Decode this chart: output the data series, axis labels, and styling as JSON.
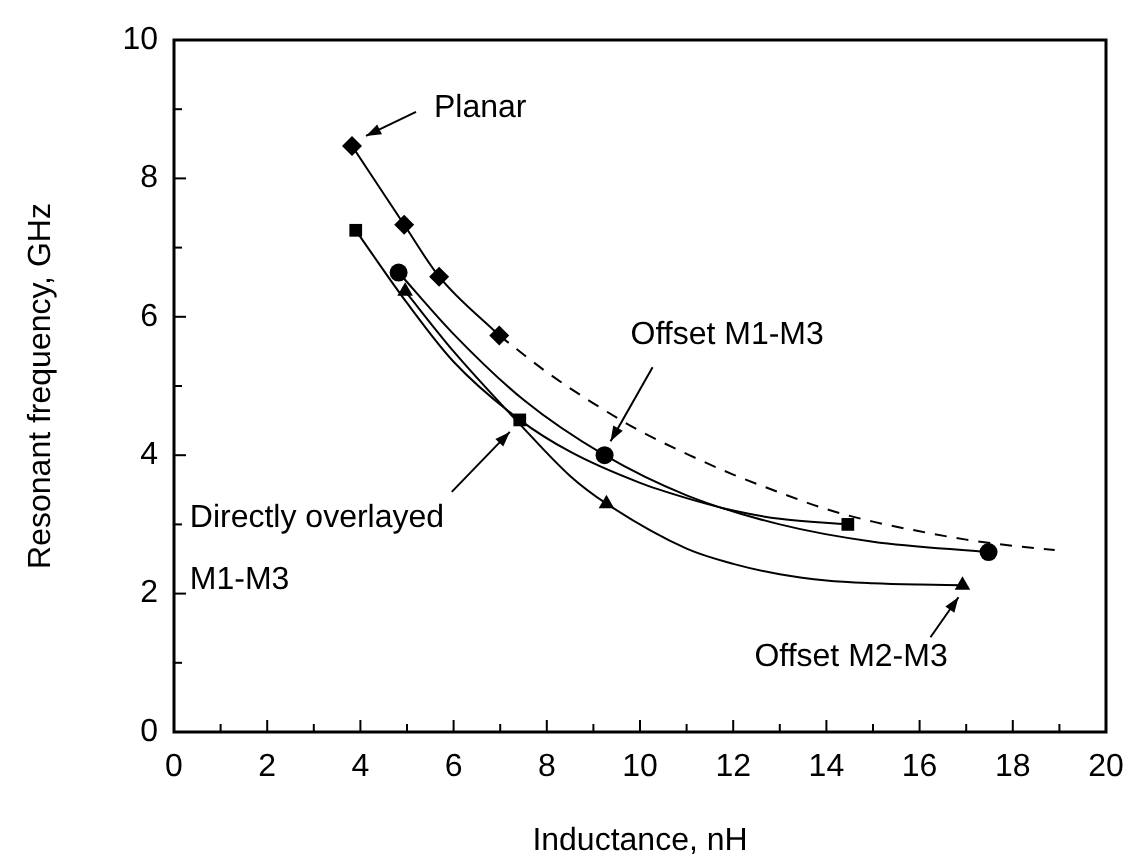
{
  "chart_data": {
    "type": "scatter",
    "xlabel": "Inductance, nH",
    "ylabel": "Resonant frequency, GHz",
    "xlim": [
      0,
      20
    ],
    "ylim": [
      0,
      10
    ],
    "xticks": [
      0,
      {
        "value": 1,
        "label": null
      },
      2,
      {
        "value": 3,
        "label": null
      },
      4,
      {
        "value": 5,
        "label": null
      },
      6,
      {
        "value": 7,
        "label": null
      },
      8,
      {
        "value": 9,
        "label": null
      },
      10,
      {
        "value": 11,
        "label": null
      },
      12,
      {
        "value": 13,
        "label": null
      },
      14,
      {
        "value": 15,
        "label": null
      },
      16,
      {
        "value": 17,
        "label": null
      },
      18,
      {
        "value": 19,
        "label": null
      },
      20
    ],
    "yticks": [
      0,
      {
        "value": 1,
        "label": null
      },
      2,
      {
        "value": 3,
        "label": null
      },
      4,
      {
        "value": 5,
        "label": null
      },
      6,
      {
        "value": 7,
        "label": null
      },
      8,
      {
        "value": 9,
        "label": null
      },
      10
    ],
    "grid": false,
    "legend": false,
    "series": [
      {
        "type": "line",
        "marker": "diamond",
        "line_style": "solid",
        "color": "#000000",
        "x": [
          3.82,
          4.94,
          5.69,
          6.98
        ],
        "values": [
          8.47,
          7.33,
          6.58,
          5.73
        ]
      },
      {
        "type": "line",
        "marker": "none",
        "line_style": "dashed",
        "color": "#000000",
        "x": [
          6.98,
          8,
          9,
          10,
          11,
          12,
          13,
          14,
          15,
          16,
          17,
          18,
          18.9
        ],
        "values": [
          5.73,
          5.2,
          4.75,
          4.35,
          4.02,
          3.72,
          3.46,
          3.22,
          3.04,
          2.9,
          2.78,
          2.69,
          2.63
        ]
      },
      {
        "type": "scatter",
        "marker": "square",
        "color": "#000000",
        "x": [
          3.9,
          7.42,
          14.46
        ],
        "values": [
          7.25,
          4.51,
          3.0
        ]
      },
      {
        "type": "line",
        "marker": "none",
        "line_style": "solid",
        "color": "#000000",
        "x": [
          3.9,
          5,
          6,
          7.42,
          8.5,
          10,
          11,
          12,
          13,
          14.46
        ],
        "values": [
          7.25,
          6.2,
          5.35,
          4.51,
          4.05,
          3.6,
          3.38,
          3.2,
          3.08,
          3.0
        ]
      },
      {
        "type": "scatter",
        "marker": "circle",
        "color": "#000000",
        "x": [
          4.82,
          9.24,
          17.48
        ],
        "values": [
          6.64,
          4.0,
          2.6
        ]
      },
      {
        "type": "line",
        "marker": "none",
        "line_style": "solid",
        "color": "#000000",
        "x": [
          4.82,
          6,
          7.5,
          9.24,
          11,
          13,
          15,
          17.48
        ],
        "values": [
          6.64,
          5.75,
          4.8,
          4.0,
          3.42,
          3.0,
          2.75,
          2.6
        ]
      },
      {
        "type": "scatter",
        "marker": "triangle",
        "color": "#000000",
        "x": [
          4.96,
          9.28,
          16.92
        ],
        "values": [
          6.37,
          3.3,
          2.12
        ]
      },
      {
        "type": "line",
        "marker": "none",
        "line_style": "solid",
        "color": "#000000",
        "x": [
          4.96,
          6,
          7.42,
          8.5,
          9.28,
          11,
          12,
          13,
          14,
          15,
          16,
          16.92
        ],
        "values": [
          6.37,
          5.5,
          4.45,
          3.7,
          3.3,
          2.65,
          2.43,
          2.28,
          2.19,
          2.15,
          2.13,
          2.12
        ]
      }
    ],
    "annotations": [
      {
        "text": "Planar",
        "x": 3.82,
        "y": 8.47
      },
      {
        "text": "Offset M1-M3",
        "x": 9.24,
        "y": 4.0
      },
      {
        "text": "Directly overlayed M1-M3",
        "x": 7.42,
        "y": 4.51
      },
      {
        "text": "Offset M2-M3",
        "x": 16.92,
        "y": 2.12
      }
    ]
  }
}
